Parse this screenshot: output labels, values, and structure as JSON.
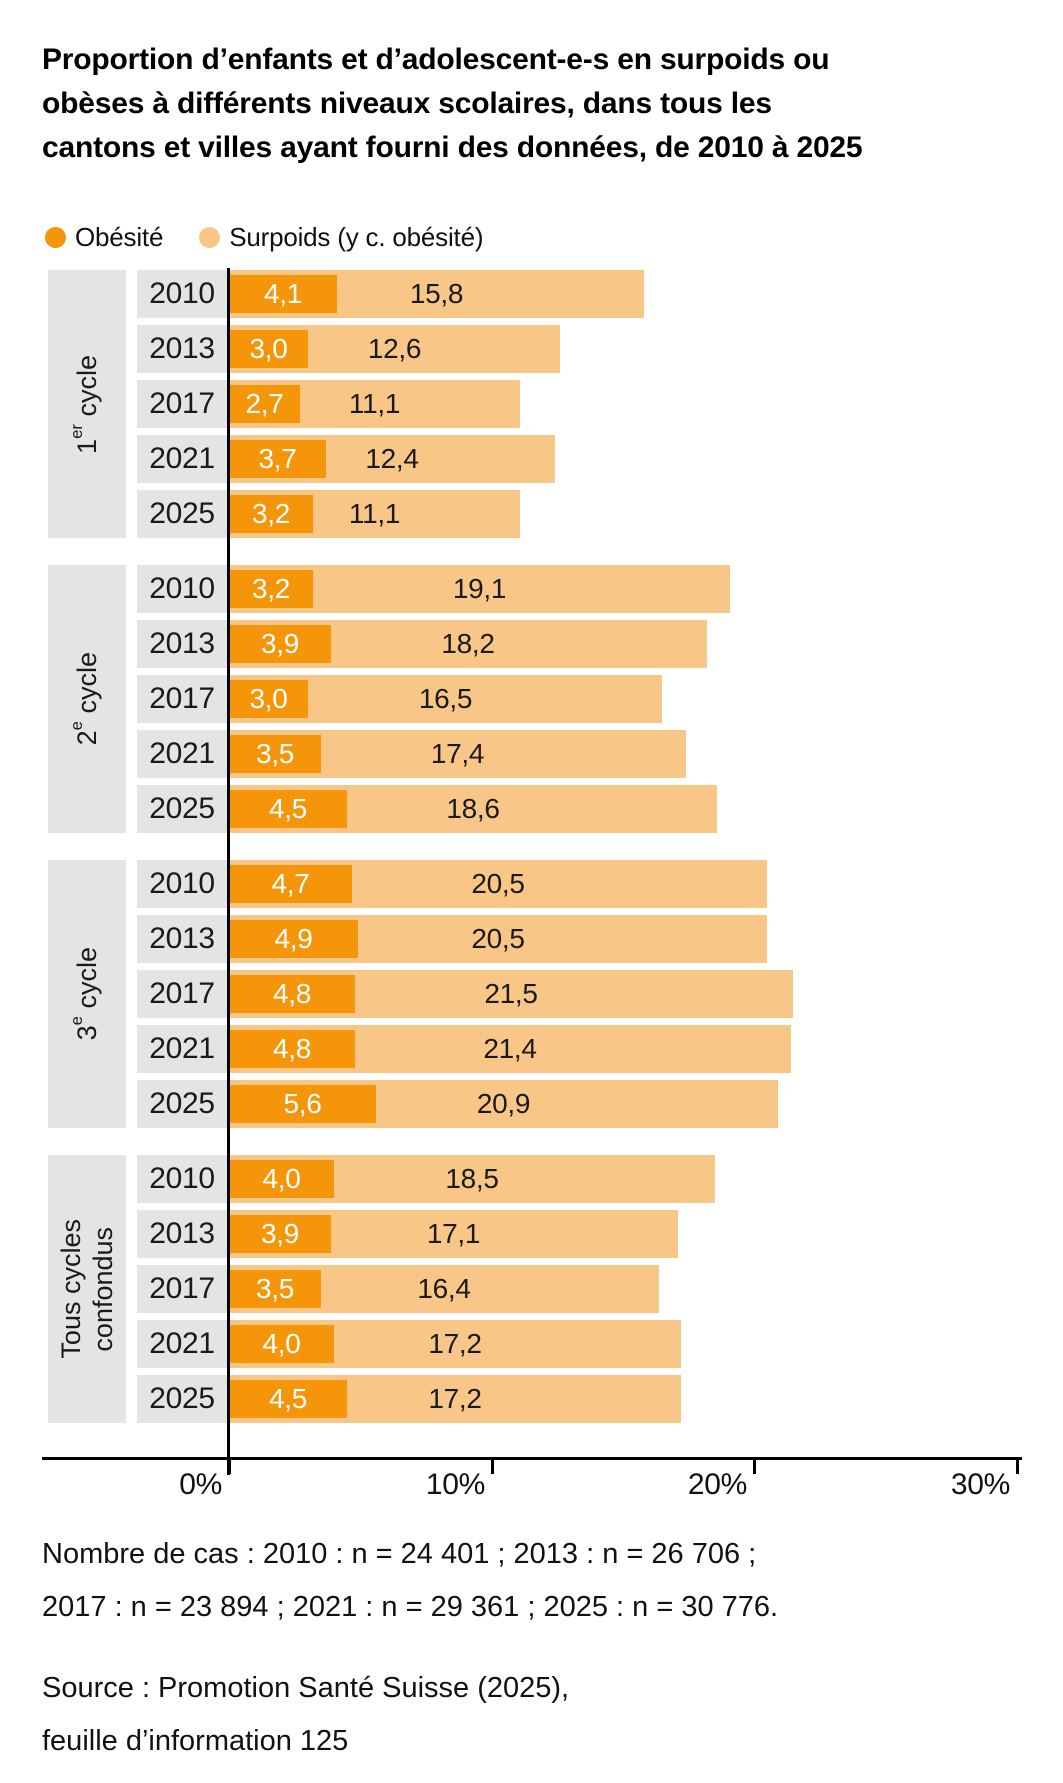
{
  "title": {
    "lines": [
      "Proportion d’enfants et d’adolescent-e-s en surpoids ou",
      "obèses à différents niveaux scolaires, dans tous les",
      "cantons et villes ayant fourni des données, de 2010 à 2025"
    ]
  },
  "legend": {
    "items": [
      {
        "label": "Obésité",
        "color": "#F5960A"
      },
      {
        "label": "Surpoids (y c. obésité)",
        "color": "#F8C687"
      }
    ]
  },
  "chart_data": {
    "type": "bar",
    "orientation": "horizontal",
    "unit": "%",
    "title": "Proportion d’enfants et d’adolescent-e-s en surpoids ou obèses à différents niveaux scolaires, dans tous les cantons et villes ayant fourni des données, de 2010 à 2025",
    "series_names": [
      "Obésité",
      "Surpoids (y c. obésité)"
    ],
    "colors": {
      "obesite": "#F5960A",
      "surpoids": "#F8C687",
      "row_label_bg": "#E4E4E4"
    },
    "axis": {
      "max": 30,
      "grid": false,
      "ticks": [
        {
          "value": 0,
          "label": "0%"
        },
        {
          "value": 10,
          "label": "10%"
        },
        {
          "value": 20,
          "label": "20%"
        },
        {
          "value": 30,
          "label": "30%"
        }
      ]
    },
    "groups": [
      {
        "label": "1er cycle",
        "label_lines": [
          [
            {
              "t": "1"
            },
            {
              "t": "er",
              "sup": true
            },
            {
              "t": " cycle"
            }
          ]
        ],
        "rows": [
          {
            "year": "2010",
            "obesite": 4.1,
            "obesite_label": "4,1",
            "surpoids": 15.8,
            "surpoids_label": "15,8"
          },
          {
            "year": "2013",
            "obesite": 3.0,
            "obesite_label": "3,0",
            "surpoids": 12.6,
            "surpoids_label": "12,6"
          },
          {
            "year": "2017",
            "obesite": 2.7,
            "obesite_label": "2,7",
            "surpoids": 11.1,
            "surpoids_label": "11,1"
          },
          {
            "year": "2021",
            "obesite": 3.7,
            "obesite_label": "3,7",
            "surpoids": 12.4,
            "surpoids_label": "12,4"
          },
          {
            "year": "2025",
            "obesite": 3.2,
            "obesite_label": "3,2",
            "surpoids": 11.1,
            "surpoids_label": "11,1"
          }
        ]
      },
      {
        "label": "2e cycle",
        "label_lines": [
          [
            {
              "t": "2"
            },
            {
              "t": "e",
              "sup": true
            },
            {
              "t": " cycle"
            }
          ]
        ],
        "rows": [
          {
            "year": "2010",
            "obesite": 3.2,
            "obesite_label": "3,2",
            "surpoids": 19.1,
            "surpoids_label": "19,1"
          },
          {
            "year": "2013",
            "obesite": 3.9,
            "obesite_label": "3,9",
            "surpoids": 18.2,
            "surpoids_label": "18,2"
          },
          {
            "year": "2017",
            "obesite": 3.0,
            "obesite_label": "3,0",
            "surpoids": 16.5,
            "surpoids_label": "16,5"
          },
          {
            "year": "2021",
            "obesite": 3.5,
            "obesite_label": "3,5",
            "surpoids": 17.4,
            "surpoids_label": "17,4"
          },
          {
            "year": "2025",
            "obesite": 4.5,
            "obesite_label": "4,5",
            "surpoids": 18.6,
            "surpoids_label": "18,6"
          }
        ]
      },
      {
        "label": "3e cycle",
        "label_lines": [
          [
            {
              "t": "3"
            },
            {
              "t": "e",
              "sup": true
            },
            {
              "t": " cycle"
            }
          ]
        ],
        "rows": [
          {
            "year": "2010",
            "obesite": 4.7,
            "obesite_label": "4,7",
            "surpoids": 20.5,
            "surpoids_label": "20,5"
          },
          {
            "year": "2013",
            "obesite": 4.9,
            "obesite_label": "4,9",
            "surpoids": 20.5,
            "surpoids_label": "20,5"
          },
          {
            "year": "2017",
            "obesite": 4.8,
            "obesite_label": "4,8",
            "surpoids": 21.5,
            "surpoids_label": "21,5"
          },
          {
            "year": "2021",
            "obesite": 4.8,
            "obesite_label": "4,8",
            "surpoids": 21.4,
            "surpoids_label": "21,4"
          },
          {
            "year": "2025",
            "obesite": 5.6,
            "obesite_label": "5,6",
            "surpoids": 20.9,
            "surpoids_label": "20,9"
          }
        ]
      },
      {
        "label": "Tous cycles confondus",
        "label_lines": [
          [
            {
              "t": "Tous cycles"
            }
          ],
          [
            {
              "t": "confondus"
            }
          ]
        ],
        "rows": [
          {
            "year": "2010",
            "obesite": 4.0,
            "obesite_label": "4,0",
            "surpoids": 18.5,
            "surpoids_label": "18,5"
          },
          {
            "year": "2013",
            "obesite": 3.9,
            "obesite_label": "3,9",
            "surpoids": 17.1,
            "surpoids_label": "17,1"
          },
          {
            "year": "2017",
            "obesite": 3.5,
            "obesite_label": "3,5",
            "surpoids": 16.4,
            "surpoids_label": "16,4"
          },
          {
            "year": "2021",
            "obesite": 4.0,
            "obesite_label": "4,0",
            "surpoids": 17.2,
            "surpoids_label": "17,2"
          },
          {
            "year": "2025",
            "obesite": 4.5,
            "obesite_label": "4,5",
            "surpoids": 17.2,
            "surpoids_label": "17,2"
          }
        ]
      }
    ]
  },
  "notes": {
    "lines": [
      "Nombre de cas : 2010 : n = 24 401 ; 2013 : n = 26 706 ;",
      "2017 : n = 23 894 ; 2021 : n = 29 361 ; 2025 : n = 30 776."
    ]
  },
  "source": {
    "lines": [
      "Source : Promotion Santé Suisse (2025),",
      "feuille d’information 125"
    ]
  }
}
